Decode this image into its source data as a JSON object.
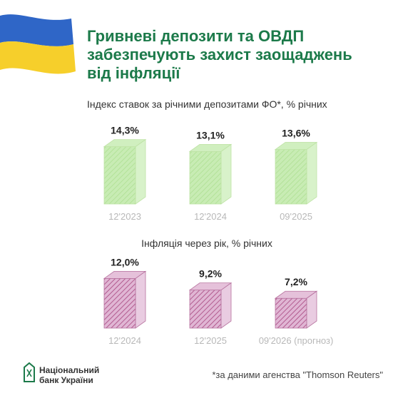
{
  "headline": {
    "lines": [
      "Гривневі депозити та ОВДП",
      "забезпечують захист заощаджень",
      "від інфляції"
    ]
  },
  "colors": {
    "flag_blue": "#2f66c7",
    "flag_yellow": "#f6cf2b",
    "title_green": "#1c7a4a",
    "deposit_fill": "#c8ecb4",
    "deposit_hatch": "#aedf92",
    "inflation_fill": "#e0b6d4",
    "inflation_hatch": "#a8457f"
  },
  "chart_data": [
    {
      "type": "bar",
      "title": "Індекс ставок за річними депозитами ФО*, % річних",
      "categories": [
        "12'2023",
        "12'2024",
        "09'2025"
      ],
      "values": [
        14.3,
        13.1,
        13.6
      ],
      "value_labels": [
        "14,3%",
        "13,1%",
        "13,6%"
      ],
      "unit": "%",
      "style": "hatched 3d columns, light green"
    },
    {
      "type": "bar",
      "title": "Інфляція через рік, % річних",
      "categories": [
        "12'2024",
        "12'2025",
        "09'2026 (прогноз)"
      ],
      "values": [
        12.0,
        9.2,
        7.2
      ],
      "value_labels": [
        "12,0%",
        "9,2%",
        "7,2%"
      ],
      "unit": "%",
      "style": "hatched 3d columns, pink"
    }
  ],
  "footer": {
    "bank_name_lines": [
      "Національний",
      "банк України"
    ],
    "logo_icon": "nbu-logo-icon",
    "source_note": "*за даними агенства \"Thomson Reuters\""
  }
}
